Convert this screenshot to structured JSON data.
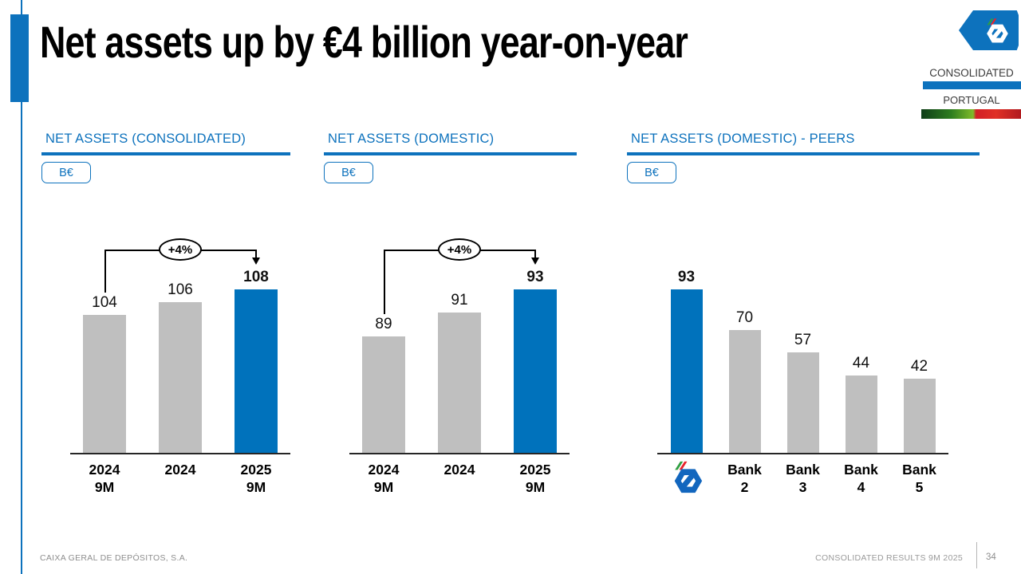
{
  "slide": {
    "title": "Net assets up by €4 billion year-on-year",
    "brand": {
      "logo_icon": "cgd-logo",
      "scope_label": "CONSOLIDATED",
      "region_label": "PORTUGAL"
    },
    "footer": {
      "company": "CAIXA GERAL DE DEPÓSITOS, S.A.",
      "report": "CONSOLIDATED RESULTS 9M 2025",
      "page": "34"
    },
    "colors": {
      "accent_blue": "#0072BC",
      "bar_gray": "#BFBFBF",
      "flag_green": "#7FBB2A",
      "flag_red": "#D21F26"
    }
  },
  "chart_data": [
    {
      "type": "bar",
      "title": "NET ASSETS (CONSOLIDATED)",
      "unit_badge": "B€",
      "categories": [
        {
          "lines": [
            "2024",
            "9M"
          ]
        },
        {
          "lines": [
            "2024"
          ]
        },
        {
          "lines": [
            "2025",
            "9M"
          ]
        }
      ],
      "values": [
        104,
        106,
        108
      ],
      "highlight_index": 2,
      "annotation": {
        "label": "+4%",
        "from_index": 0,
        "to_index": 2
      },
      "ylim": [
        82,
        108
      ],
      "xlabel": "",
      "ylabel": "",
      "legend": "none",
      "grid": false
    },
    {
      "type": "bar",
      "title": "NET ASSETS (DOMESTIC)",
      "unit_badge": "B€",
      "categories": [
        {
          "lines": [
            "2024",
            "9M"
          ]
        },
        {
          "lines": [
            "2024"
          ]
        },
        {
          "lines": [
            "2025",
            "9M"
          ]
        }
      ],
      "values": [
        89,
        91,
        93
      ],
      "highlight_index": 2,
      "annotation": {
        "label": "+4%",
        "from_index": 0,
        "to_index": 2
      },
      "ylim": [
        79,
        93
      ],
      "xlabel": "",
      "ylabel": "",
      "legend": "none",
      "grid": false
    },
    {
      "type": "bar",
      "title": "NET ASSETS (DOMESTIC) - PEERS",
      "unit_badge": "B€",
      "categories": [
        {
          "icon": "cgd-logo"
        },
        {
          "lines": [
            "Bank",
            "2"
          ]
        },
        {
          "lines": [
            "Bank",
            "3"
          ]
        },
        {
          "lines": [
            "Bank",
            "4"
          ]
        },
        {
          "lines": [
            "Bank",
            "5"
          ]
        }
      ],
      "values": [
        93,
        70,
        57,
        44,
        42
      ],
      "highlight_index": 0,
      "annotation": null,
      "ylim": [
        0,
        93
      ],
      "xlabel": "",
      "ylabel": "",
      "legend": "none",
      "grid": false
    }
  ]
}
